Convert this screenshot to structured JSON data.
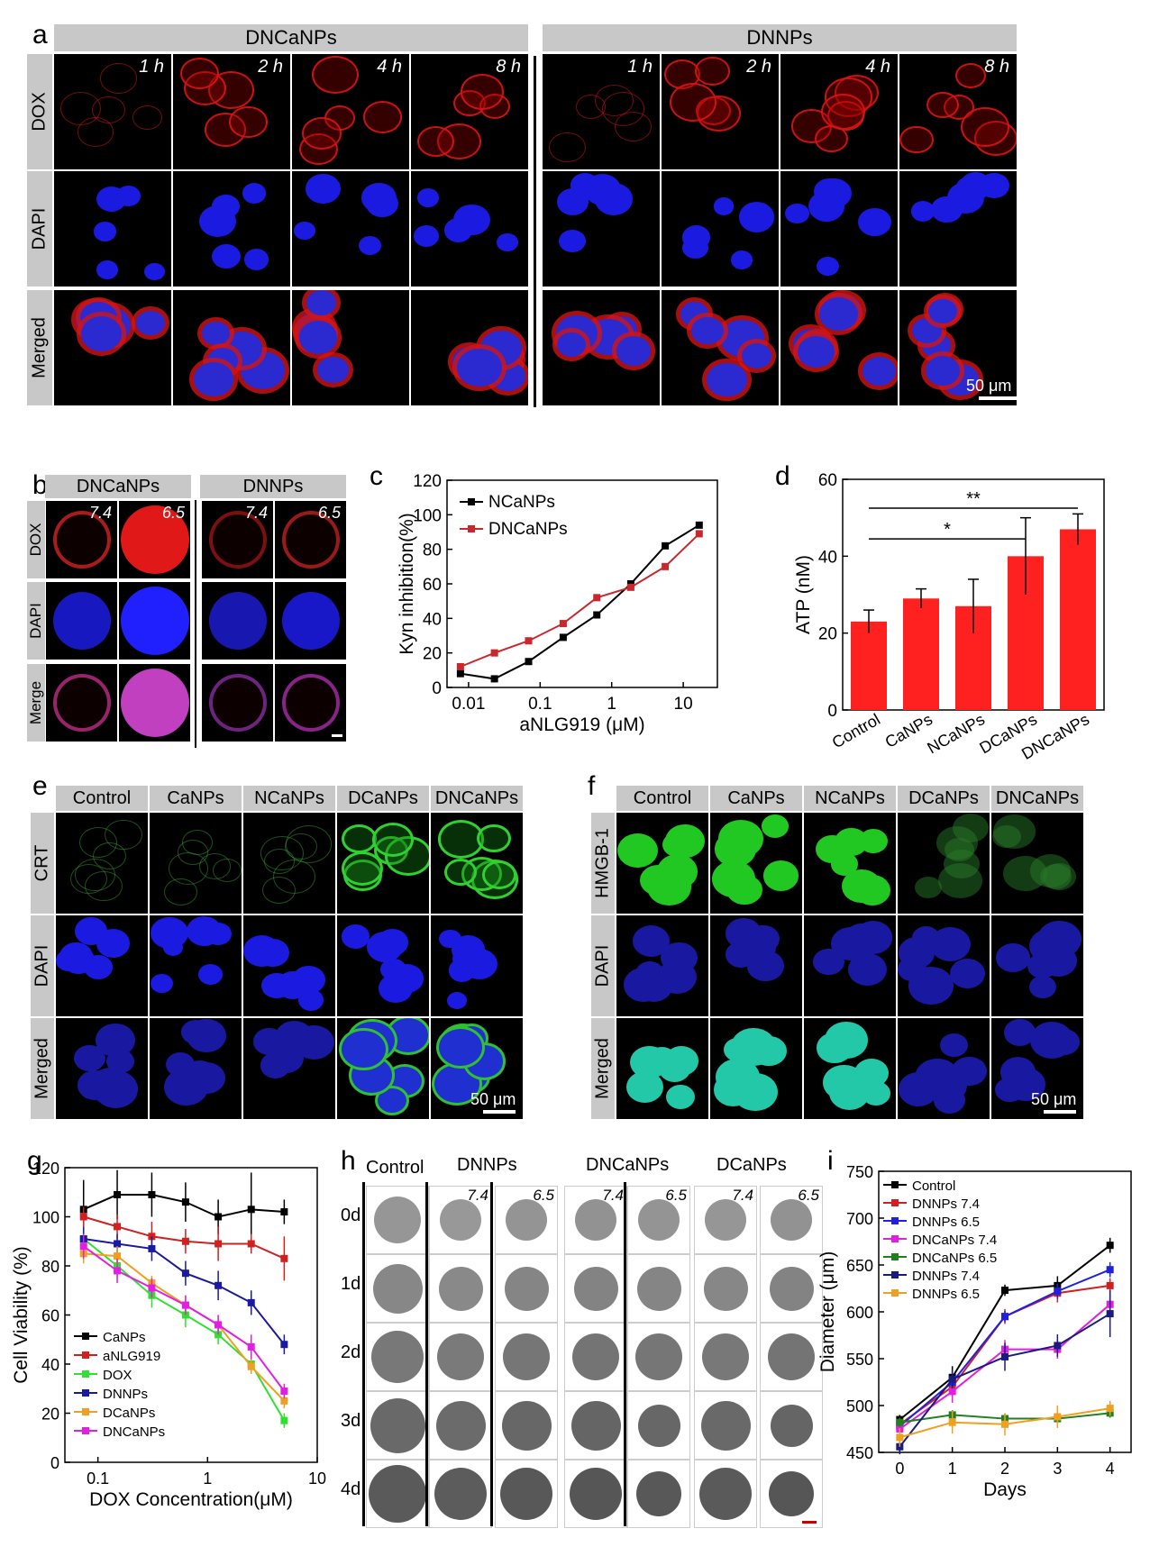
{
  "panel_a": {
    "label": "a",
    "groups": [
      "DNCaNPs",
      "DNNPs"
    ],
    "rows": [
      "DOX",
      "DAPI",
      "Merged"
    ],
    "times": [
      "1 h",
      "2 h",
      "4 h",
      "8 h"
    ],
    "scale": "50 μm"
  },
  "panel_b": {
    "label": "b",
    "groups": [
      "DNCaNPs",
      "DNNPs"
    ],
    "rows": [
      "DOX",
      "DAPI",
      "Merge"
    ],
    "ph": [
      "7.4",
      "6.5"
    ]
  },
  "panel_c": {
    "label": "c",
    "chart_data": {
      "type": "line",
      "xlabel": "aNLG919 (μM)",
      "ylabel": "Kyn inhibition(%)",
      "xscale": "log",
      "xlim": [
        0.005,
        30
      ],
      "ylim": [
        0,
        120
      ],
      "xticks": [
        "0.01",
        "0.1",
        "1",
        "10"
      ],
      "yticks": [
        "0",
        "20",
        "40",
        "60",
        "80",
        "100",
        "120"
      ],
      "legend": "top-left",
      "series": [
        {
          "name": "NCaNPs",
          "color": "#000000",
          "x": [
            0.0077,
            0.023,
            0.069,
            0.21,
            0.62,
            1.85,
            5.6,
            16.7
          ],
          "y": [
            8,
            5,
            15,
            29,
            42,
            60,
            82,
            94
          ]
        },
        {
          "name": "DNCaNPs",
          "color": "#c8282d",
          "x": [
            0.0077,
            0.023,
            0.069,
            0.21,
            0.62,
            1.85,
            5.6,
            16.7
          ],
          "y": [
            12,
            20,
            27,
            37,
            52,
            58,
            70,
            89
          ]
        }
      ]
    }
  },
  "panel_d": {
    "label": "d",
    "chart_data": {
      "type": "bar",
      "categories": [
        "Control",
        "CaNPs",
        "NCaNPs",
        "DCaNPs",
        "DNCaNPs"
      ],
      "values": [
        23,
        29,
        27,
        40,
        47
      ],
      "errors": [
        3,
        2.5,
        7,
        10,
        4
      ],
      "ylabel": "ATP (nM)",
      "ylim": [
        0,
        60
      ],
      "yticks": [
        "0",
        "20",
        "40",
        "60"
      ],
      "color": "#ff2020",
      "significance": [
        {
          "from": "Control",
          "to": "DCaNPs",
          "label": "*"
        },
        {
          "from": "Control",
          "to": "DNCaNPs",
          "label": "**"
        }
      ]
    }
  },
  "panel_e": {
    "label": "e",
    "groups": [
      "Control",
      "CaNPs",
      "NCaNPs",
      "DCaNPs",
      "DNCaNPs"
    ],
    "rows": [
      "CRT",
      "DAPI",
      "Merged"
    ],
    "scale": "50 μm"
  },
  "panel_f": {
    "label": "f",
    "groups": [
      "Control",
      "CaNPs",
      "NCaNPs",
      "DCaNPs",
      "DNCaNPs"
    ],
    "rows": [
      "HMGB-1",
      "DAPI",
      "Merged"
    ],
    "scale": "50 μm"
  },
  "panel_g": {
    "label": "g",
    "chart_data": {
      "type": "line",
      "xlabel": "DOX Concentration(μM)",
      "ylabel": "Cell Viability (%)",
      "xscale": "log",
      "xlim": [
        0.05,
        10
      ],
      "ylim": [
        0,
        120
      ],
      "xticks": [
        "0.1",
        "1",
        "10"
      ],
      "yticks": [
        "0",
        "20",
        "40",
        "60",
        "80",
        "100",
        "120"
      ],
      "legend": "bottom-left",
      "x": [
        0.074,
        0.15,
        0.31,
        0.63,
        1.25,
        2.5,
        5
      ],
      "series": [
        {
          "name": "CaNPs",
          "color": "#000000",
          "values": [
            103,
            109,
            109,
            106,
            100,
            103,
            102
          ],
          "errors": [
            12,
            10,
            9,
            8,
            7,
            15,
            5
          ]
        },
        {
          "name": "aNLG919",
          "color": "#d02020",
          "values": [
            100,
            96,
            92,
            90,
            89,
            89,
            83
          ],
          "errors": [
            4,
            5,
            6,
            5,
            7,
            4,
            9
          ]
        },
        {
          "name": "DOX",
          "color": "#30e030",
          "values": [
            91,
            80,
            68,
            60,
            52,
            40,
            17
          ],
          "errors": [
            5,
            5,
            5,
            5,
            4,
            4,
            3
          ]
        },
        {
          "name": "DNNPs",
          "color": "#1a1aa0",
          "values": [
            91,
            89,
            87,
            77,
            72,
            65,
            48
          ],
          "errors": [
            5,
            4,
            5,
            5,
            6,
            5,
            4
          ]
        },
        {
          "name": "DCaNPs",
          "color": "#f0a020",
          "values": [
            85,
            84,
            73,
            64,
            56,
            39,
            25
          ],
          "errors": [
            4,
            4,
            3,
            4,
            4,
            3,
            3
          ]
        },
        {
          "name": "DNCaNPs",
          "color": "#e020e0",
          "values": [
            88,
            78,
            71,
            64,
            56,
            47,
            29
          ],
          "errors": [
            5,
            5,
            4,
            4,
            4,
            5,
            3
          ]
        }
      ]
    }
  },
  "panel_h": {
    "label": "h",
    "cols": [
      "Control",
      "DNNPs",
      "DNCaNPs",
      "DCaNPs"
    ],
    "ph": [
      "7.4",
      "6.5"
    ],
    "days": [
      "0d",
      "1d",
      "2d",
      "3d",
      "4d"
    ]
  },
  "panel_i": {
    "label": "i",
    "chart_data": {
      "type": "line",
      "xlabel": "Days",
      "ylabel": "Diameter (μm)",
      "xlim": [
        -0.4,
        4.4
      ],
      "ylim": [
        450,
        750
      ],
      "xticks": [
        "0",
        "1",
        "2",
        "3",
        "4"
      ],
      "yticks": [
        "450",
        "500",
        "550",
        "600",
        "650",
        "700",
        "750"
      ],
      "legend": "top-left",
      "x": [
        0,
        1,
        2,
        3,
        4
      ],
      "series": [
        {
          "name": "Control",
          "color": "#000000",
          "values": [
            485,
            530,
            623,
            628,
            671
          ],
          "errors": [
            5,
            12,
            6,
            10,
            8
          ]
        },
        {
          "name": "DNNPs 7.4",
          "color": "#d02020",
          "values": [
            480,
            520,
            595,
            620,
            628
          ],
          "errors": [
            5,
            10,
            8,
            10,
            8
          ]
        },
        {
          "name": "DNNPs 6.5",
          "color": "#2020e0",
          "values": [
            478,
            525,
            595,
            622,
            645
          ],
          "errors": [
            5,
            10,
            6,
            8,
            8
          ]
        },
        {
          "name": "DNCaNPs 7.4",
          "color": "#e020e0",
          "values": [
            475,
            515,
            560,
            560,
            608
          ],
          "errors": [
            5,
            12,
            10,
            10,
            12
          ]
        },
        {
          "name": "DNCaNPs 6.5",
          "color": "#208020",
          "values": [
            482,
            490,
            486,
            486,
            492
          ],
          "errors": [
            5,
            5,
            5,
            5,
            5
          ]
        },
        {
          "name": "DNNPs 7.4",
          "color": "#1a1a80",
          "values": [
            456,
            528,
            552,
            564,
            598
          ],
          "errors": [
            8,
            10,
            15,
            12,
            25
          ]
        },
        {
          "name": "DNNPs 6.5",
          "color": "#f0a020",
          "values": [
            466,
            482,
            480,
            488,
            497
          ],
          "errors": [
            10,
            12,
            12,
            12,
            8
          ]
        }
      ]
    }
  }
}
